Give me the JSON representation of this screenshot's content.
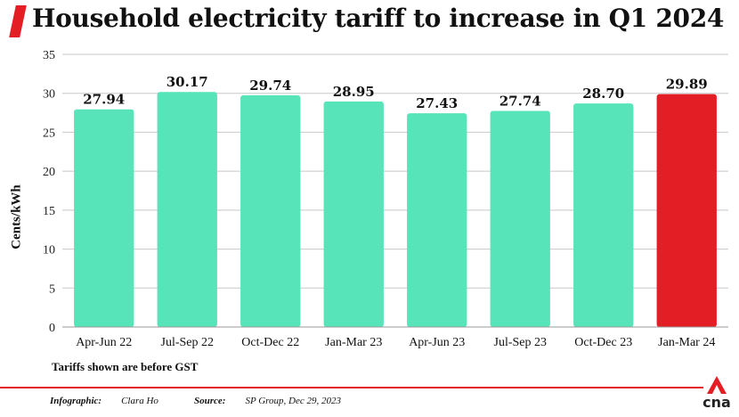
{
  "header": {
    "title": "Household electricity tariff to increase in Q1 2024"
  },
  "chart_data": {
    "type": "bar",
    "title": "Household electricity tariff to increase in Q1 2024",
    "xlabel": "",
    "ylabel": "Cents/kWh",
    "ylim": [
      0,
      35
    ],
    "yticks": [
      0,
      5,
      10,
      15,
      20,
      25,
      30,
      35
    ],
    "categories": [
      "Apr-Jun 22",
      "Jul-Sep 22",
      "Oct-Dec 22",
      "Jan-Mar 23",
      "Apr-Jun 23",
      "Jul-Sep 23",
      "Oct-Dec 23",
      "Jan-Mar 24"
    ],
    "values": [
      27.94,
      30.17,
      29.74,
      28.95,
      27.43,
      27.74,
      28.7,
      29.89
    ],
    "data_labels": [
      "27.94",
      "30.17",
      "29.74",
      "28.95",
      "27.43",
      "27.74",
      "28.70",
      "29.89"
    ],
    "grid": true,
    "colors": {
      "default": "#56e4b8",
      "highlight": "#e31e24",
      "grid": "#c8c8c8"
    },
    "highlight_index": 7
  },
  "note": "Tariffs shown are before GST",
  "footer": {
    "infographic_label": "Infographic:",
    "infographic_value": "Clara Ho",
    "source_label": "Source:",
    "source_value": "SP Group, Dec 29, 2023"
  },
  "logo": {
    "text": "cna",
    "icon": "cna-logo-icon"
  }
}
